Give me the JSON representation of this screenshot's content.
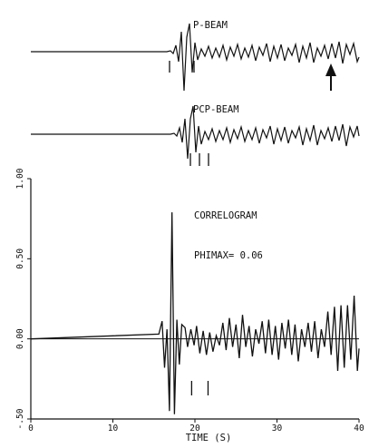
{
  "chart_data": [
    {
      "type": "line",
      "title": "P-BEAM",
      "picks_s": [
        15.3,
        20.3
      ],
      "arrow_at_s": 36.9
    },
    {
      "type": "line",
      "title": "PCP-BEAM",
      "picks_s": [
        19.4,
        20.5,
        21.7
      ]
    },
    {
      "type": "line",
      "title": "CORRELOGRAM",
      "annotation": "PHIMAX= 0.06",
      "xlabel": "TIME (S)",
      "xlim": [
        0,
        40
      ],
      "ylim": [
        -0.5,
        1.0
      ],
      "xticks": [
        0,
        10,
        20,
        30,
        40
      ],
      "xtick_labels": [
        "0",
        "10",
        "20",
        "30",
        "40"
      ],
      "yticks": [
        -0.5,
        0.0,
        0.5,
        1.0
      ],
      "ytick_labels": [
        "-.50",
        "0.00",
        "0.50",
        "1.00"
      ],
      "picks_s": [
        19.6,
        21.6
      ],
      "peak": {
        "x": 17.2,
        "y": 0.79
      },
      "series": [
        {
          "x": [
            0,
            15.6,
            16.0,
            16.3,
            16.6,
            16.9,
            17.2,
            17.5,
            17.8,
            18.1,
            18.4,
            18.8,
            19.1,
            19.5,
            19.9,
            20.2,
            20.6,
            21.0,
            21.4,
            21.8,
            22.2,
            22.6,
            23.0,
            23.4,
            23.8,
            24.2,
            24.6,
            25.0,
            25.4,
            25.8,
            26.2,
            26.6,
            27.0,
            27.4,
            27.8,
            28.2,
            28.6,
            29.0,
            29.4,
            29.8,
            30.2,
            30.6,
            31.0,
            31.4,
            31.8,
            32.2,
            32.6,
            33.0,
            33.4,
            33.8,
            34.2,
            34.6,
            35.0,
            35.4,
            35.8,
            36.2,
            36.6,
            37.0,
            37.4,
            37.8,
            38.2,
            38.6,
            39.0,
            39.4,
            39.8,
            40.0
          ],
          "y": [
            0,
            0.03,
            0.11,
            -0.18,
            0.06,
            -0.45,
            0.79,
            -0.47,
            0.12,
            -0.16,
            0.09,
            0.07,
            -0.05,
            0.06,
            -0.04,
            0.08,
            -0.09,
            0.05,
            -0.1,
            0.04,
            -0.08,
            0.02,
            -0.04,
            0.1,
            -0.07,
            0.13,
            -0.05,
            0.09,
            -0.12,
            0.15,
            -0.05,
            0.08,
            -0.11,
            0.06,
            -0.03,
            0.11,
            -0.09,
            0.12,
            -0.1,
            0.08,
            -0.13,
            0.1,
            -0.06,
            0.12,
            -0.1,
            0.09,
            -0.14,
            0.06,
            -0.05,
            0.1,
            -0.08,
            0.11,
            -0.12,
            0.06,
            -0.05,
            0.17,
            -0.1,
            0.2,
            -0.2,
            0.21,
            -0.18,
            0.21,
            -0.13,
            0.27,
            -0.2,
            -0.06
          ]
        }
      ]
    }
  ]
}
